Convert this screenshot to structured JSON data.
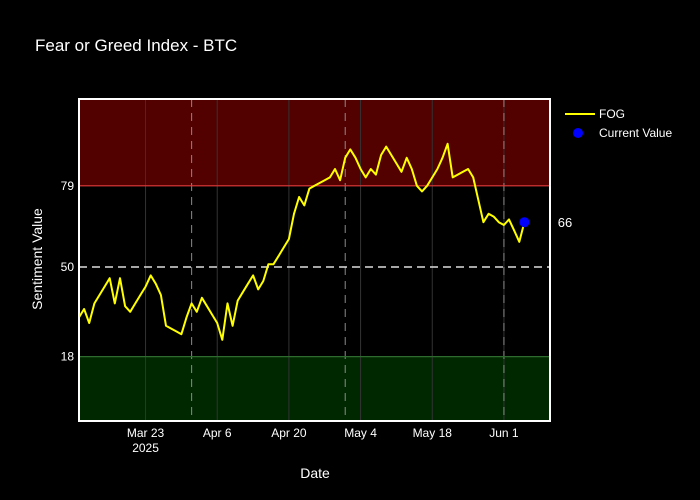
{
  "chart_data": {
    "type": "line",
    "title": "Fear or Greed Index - BTC",
    "xlabel": "Date",
    "ylabel": "Sentiment Value",
    "x_range": [
      "2025-03-10",
      "2025-06-10"
    ],
    "ylim": [
      -5,
      110
    ],
    "y_ticks": [
      18,
      50,
      79
    ],
    "x_ticks": [
      {
        "date": "2025-03-23",
        "label": "Mar 23",
        "sublabel": "2025"
      },
      {
        "date": "2025-04-06",
        "label": "Apr 6",
        "sublabel": ""
      },
      {
        "date": "2025-04-20",
        "label": "Apr 20",
        "sublabel": ""
      },
      {
        "date": "2025-05-04",
        "label": "May 4",
        "sublabel": ""
      },
      {
        "date": "2025-05-18",
        "label": "May 18",
        "sublabel": ""
      },
      {
        "date": "2025-06-01",
        "label": "Jun 1",
        "sublabel": ""
      }
    ],
    "vlines": [
      "2025-04-01",
      "2025-05-01",
      "2025-06-01"
    ],
    "hlines": [
      {
        "y": 79,
        "color": "#e23a3a"
      },
      {
        "y": 50,
        "color": "#dddddd",
        "dash": true
      },
      {
        "y": 18,
        "color": "#2e6b2e"
      }
    ],
    "bands": [
      {
        "y0": 79,
        "y1": 110,
        "color": "#520000"
      },
      {
        "y0": -5,
        "y1": 18,
        "color": "#002800"
      }
    ],
    "grid": true,
    "legend_position": "top-right",
    "series": [
      {
        "name": "FOG",
        "color": "#ffff00",
        "x": [
          "2025-03-10",
          "2025-03-11",
          "2025-03-12",
          "2025-03-13",
          "2025-03-14",
          "2025-03-15",
          "2025-03-16",
          "2025-03-17",
          "2025-03-18",
          "2025-03-19",
          "2025-03-20",
          "2025-03-21",
          "2025-03-22",
          "2025-03-23",
          "2025-03-24",
          "2025-03-25",
          "2025-03-26",
          "2025-03-27",
          "2025-03-28",
          "2025-03-29",
          "2025-03-30",
          "2025-03-31",
          "2025-04-01",
          "2025-04-02",
          "2025-04-03",
          "2025-04-04",
          "2025-04-05",
          "2025-04-06",
          "2025-04-07",
          "2025-04-08",
          "2025-04-09",
          "2025-04-10",
          "2025-04-11",
          "2025-04-12",
          "2025-04-13",
          "2025-04-14",
          "2025-04-15",
          "2025-04-16",
          "2025-04-17",
          "2025-04-18",
          "2025-04-19",
          "2025-04-20",
          "2025-04-21",
          "2025-04-22",
          "2025-04-23",
          "2025-04-24",
          "2025-04-25",
          "2025-04-26",
          "2025-04-27",
          "2025-04-28",
          "2025-04-29",
          "2025-04-30",
          "2025-05-01",
          "2025-05-02",
          "2025-05-03",
          "2025-05-04",
          "2025-05-05",
          "2025-05-06",
          "2025-05-07",
          "2025-05-08",
          "2025-05-09",
          "2025-05-10",
          "2025-05-11",
          "2025-05-12",
          "2025-05-13",
          "2025-05-14",
          "2025-05-15",
          "2025-05-16",
          "2025-05-17",
          "2025-05-18",
          "2025-05-19",
          "2025-05-20",
          "2025-05-21",
          "2025-05-22",
          "2025-05-23",
          "2025-05-24",
          "2025-05-25",
          "2025-05-26",
          "2025-05-27",
          "2025-05-28",
          "2025-05-29",
          "2025-05-30",
          "2025-05-31",
          "2025-06-01",
          "2025-06-02",
          "2025-06-03",
          "2025-06-04",
          "2025-06-05"
        ],
        "y": [
          32,
          35,
          30,
          37,
          40,
          43,
          46,
          37,
          46,
          36,
          34,
          37,
          40,
          43,
          47,
          44,
          40,
          29,
          28,
          27,
          26,
          32,
          37,
          34,
          39,
          36,
          33,
          30,
          24,
          37,
          29,
          38,
          41,
          44,
          47,
          42,
          45,
          51,
          51,
          54,
          57,
          60,
          69,
          75,
          72,
          78,
          79,
          80,
          81,
          82,
          85,
          81,
          89,
          92,
          89,
          85,
          82,
          85,
          83,
          90,
          93,
          90,
          87,
          84,
          89,
          85,
          79,
          77,
          79,
          82,
          85,
          89,
          94,
          82,
          83,
          84,
          85,
          82,
          74,
          66,
          69,
          68,
          66,
          65,
          67,
          63,
          59,
          66
        ],
        "line_width": 2
      },
      {
        "name": "Current Value",
        "color": "#0000ff",
        "x": [
          "2025-06-05"
        ],
        "y": [
          66
        ],
        "marker": "circle"
      }
    ],
    "annotations": [
      {
        "x": "2025-06-05",
        "y": 66,
        "text": "66"
      }
    ]
  }
}
